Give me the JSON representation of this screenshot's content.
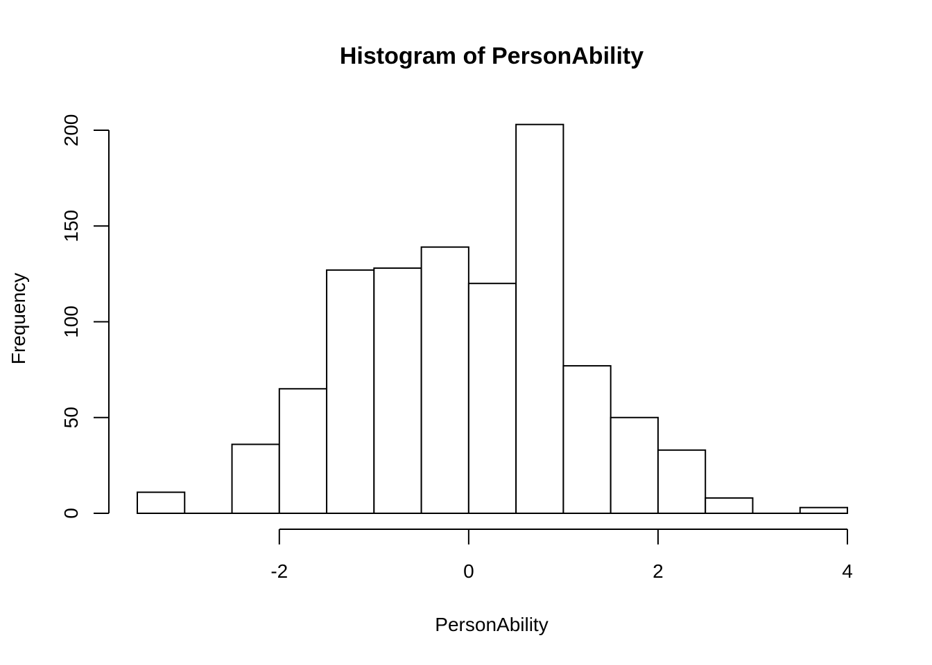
{
  "chart_data": {
    "type": "bar",
    "subtype": "histogram",
    "title": "Histogram of PersonAbility",
    "xlabel": "PersonAbility",
    "ylabel": "Frequency",
    "bins": [
      [
        -3.5,
        -3.0
      ],
      [
        -3.0,
        -2.5
      ],
      [
        -2.5,
        -2.0
      ],
      [
        -2.0,
        -1.5
      ],
      [
        -1.5,
        -1.0
      ],
      [
        -1.0,
        -0.5
      ],
      [
        -0.5,
        0.0
      ],
      [
        0.0,
        0.5
      ],
      [
        0.5,
        1.0
      ],
      [
        1.0,
        1.5
      ],
      [
        1.5,
        2.0
      ],
      [
        2.0,
        2.5
      ],
      [
        2.5,
        3.0
      ],
      [
        3.0,
        3.5
      ],
      [
        3.5,
        4.0
      ]
    ],
    "values": [
      11,
      0,
      36,
      65,
      127,
      128,
      139,
      120,
      203,
      77,
      50,
      33,
      8,
      0,
      3
    ],
    "xticks": [
      -2,
      0,
      2,
      4
    ],
    "xtick_labels": [
      "-2",
      "0",
      "2",
      "4"
    ],
    "yticks": [
      0,
      50,
      100,
      150,
      200
    ],
    "ytick_labels": [
      "0",
      "50",
      "100",
      "150",
      "200"
    ],
    "xlim": [
      -3.5,
      4.0
    ],
    "ylim": [
      0,
      200
    ],
    "grid": false,
    "legend": "none",
    "colors": {
      "bar_fill": "#ffffff",
      "bar_stroke": "#000000"
    }
  }
}
